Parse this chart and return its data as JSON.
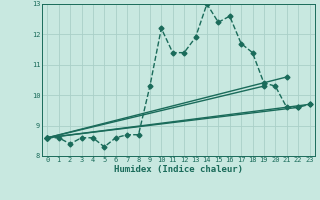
{
  "title": "",
  "xlabel": "Humidex (Indice chaleur)",
  "ylabel": "",
  "background_color": "#c8e8e0",
  "line_color": "#1a6b5a",
  "grid_color": "#aacfc8",
  "xlim": [
    -0.5,
    23.5
  ],
  "ylim": [
    8.0,
    13.0
  ],
  "yticks": [
    8,
    9,
    10,
    11,
    12,
    13
  ],
  "xticks": [
    0,
    1,
    2,
    3,
    4,
    5,
    6,
    7,
    8,
    9,
    10,
    11,
    12,
    13,
    14,
    15,
    16,
    17,
    18,
    19,
    20,
    21,
    22,
    23
  ],
  "series": [
    {
      "x": [
        0,
        1,
        2,
        3,
        4,
        5,
        6,
        7,
        8,
        9,
        10,
        11,
        12,
        13,
        14,
        15,
        16,
        17,
        18,
        19,
        20,
        21,
        22,
        23
      ],
      "y": [
        8.6,
        8.6,
        8.4,
        8.6,
        8.6,
        8.3,
        8.6,
        8.7,
        8.7,
        10.3,
        12.2,
        11.4,
        11.4,
        11.9,
        13.0,
        12.4,
        12.6,
        11.7,
        11.4,
        10.4,
        10.3,
        9.6,
        9.6,
        9.7
      ],
      "style": "--",
      "marker": "D",
      "marker_size": 2.5,
      "linewidth": 1.0,
      "color": "#1a6b5a"
    },
    {
      "x": [
        0,
        21
      ],
      "y": [
        8.6,
        10.6
      ],
      "style": "-",
      "marker": "D",
      "marker_size": 2.5,
      "linewidth": 1.0,
      "color": "#1a6b5a"
    },
    {
      "x": [
        0,
        19
      ],
      "y": [
        8.6,
        10.3
      ],
      "style": "-",
      "marker": "D",
      "marker_size": 2.5,
      "linewidth": 1.0,
      "color": "#1a6b5a"
    },
    {
      "x": [
        0,
        22
      ],
      "y": [
        8.6,
        9.6
      ],
      "style": "-",
      "marker": "D",
      "marker_size": 2.5,
      "linewidth": 1.0,
      "color": "#1a6b5a"
    },
    {
      "x": [
        0,
        23
      ],
      "y": [
        8.6,
        9.7
      ],
      "style": "-",
      "marker": "D",
      "marker_size": 2.5,
      "linewidth": 1.0,
      "color": "#1a6b5a"
    }
  ]
}
